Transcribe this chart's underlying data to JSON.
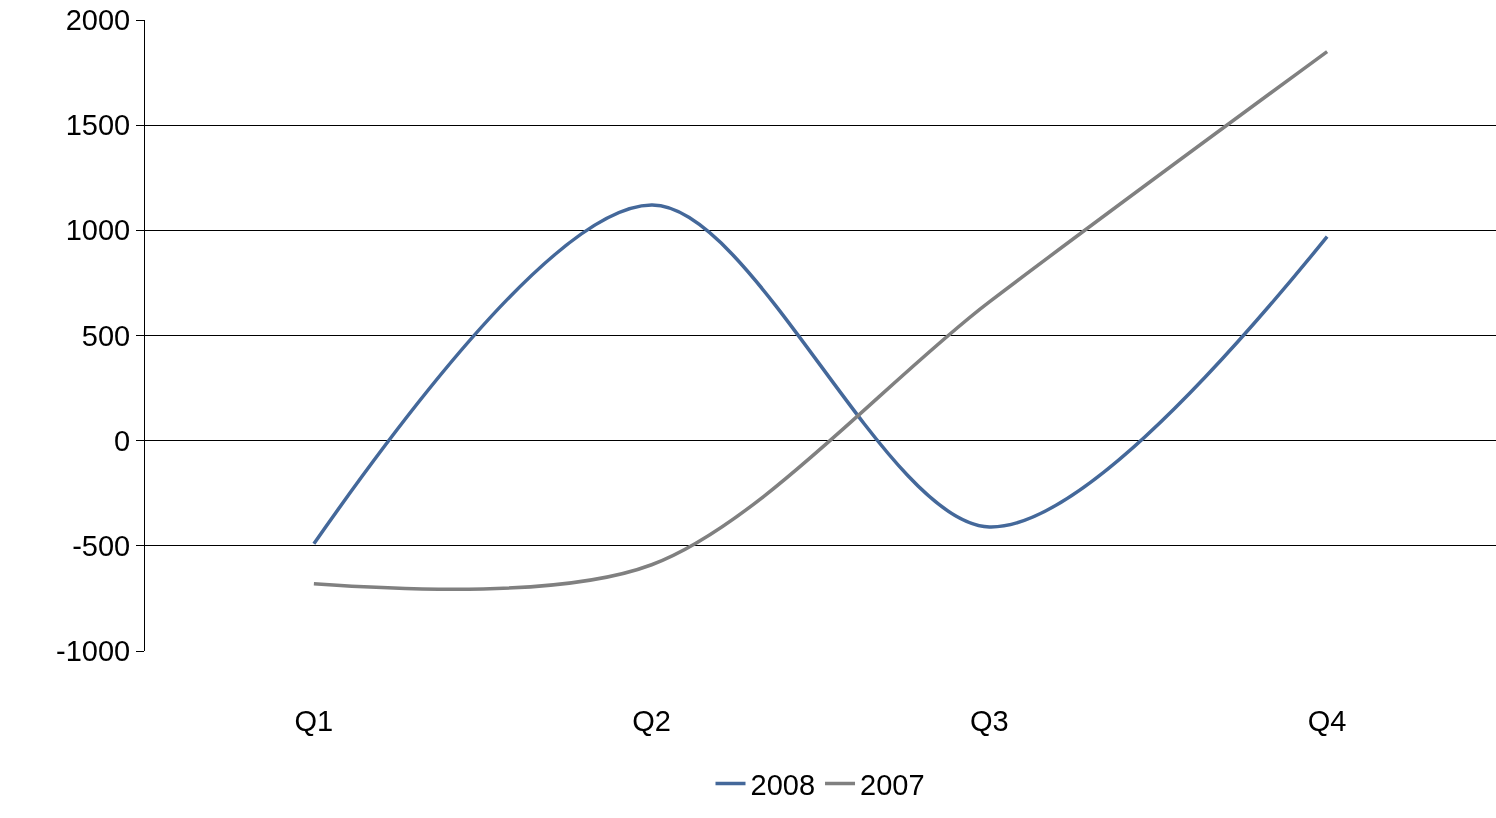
{
  "chart_data": {
    "type": "line",
    "categories": [
      "Q1",
      "Q2",
      "Q3",
      "Q4"
    ],
    "series": [
      {
        "name": "2008",
        "color": "#44689a",
        "values": [
          -490,
          1120,
          -410,
          970
        ]
      },
      {
        "name": "2007",
        "color": "#808080",
        "values": [
          -680,
          -590,
          660,
          1850
        ]
      }
    ],
    "ylim": [
      -1000,
      2000
    ],
    "yticks": [
      -1000,
      -500,
      0,
      500,
      1000,
      1500,
      2000
    ],
    "grid": "y",
    "legend": "bottom",
    "marker": "none",
    "line_style": "solid"
  }
}
